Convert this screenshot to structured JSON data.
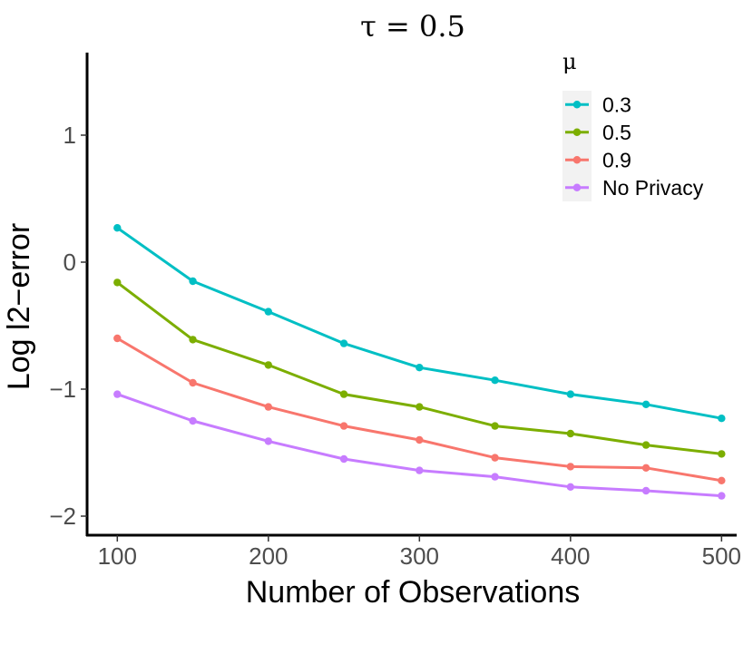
{
  "chart_data": {
    "type": "line",
    "title": "τ = 0.5",
    "xlabel": "Number of Observations",
    "ylabel": "Log l2−error",
    "x": [
      100,
      150,
      200,
      250,
      300,
      350,
      400,
      450,
      500
    ],
    "xticks": [
      100,
      200,
      300,
      400,
      500
    ],
    "xtick_labels": [
      "100",
      "200",
      "300",
      "400",
      "500"
    ],
    "yticks": [
      1,
      0,
      -1,
      -2
    ],
    "ytick_labels": [
      "1",
      "0",
      "−1",
      "−2"
    ],
    "xlim": [
      80,
      510
    ],
    "ylim": [
      -2.15,
      1.65
    ],
    "grid": false,
    "legend": {
      "title": "μ",
      "position": "top-right"
    },
    "series": [
      {
        "name": "0.3",
        "color": "#00BFC4",
        "values": [
          0.27,
          -0.15,
          -0.39,
          -0.64,
          -0.83,
          -0.93,
          -1.04,
          -1.12,
          -1.23
        ]
      },
      {
        "name": "0.5",
        "color": "#7CAE00",
        "values": [
          -0.16,
          -0.61,
          -0.81,
          -1.04,
          -1.14,
          -1.29,
          -1.35,
          -1.44,
          -1.51
        ]
      },
      {
        "name": "0.9",
        "color": "#F8766D",
        "values": [
          -0.6,
          -0.95,
          -1.14,
          -1.29,
          -1.4,
          -1.54,
          -1.61,
          -1.62,
          -1.72
        ]
      },
      {
        "name": "No Privacy",
        "color": "#C77CFF",
        "values": [
          -1.04,
          -1.25,
          -1.41,
          -1.55,
          -1.64,
          -1.69,
          -1.77,
          -1.8,
          -1.84
        ]
      }
    ]
  }
}
